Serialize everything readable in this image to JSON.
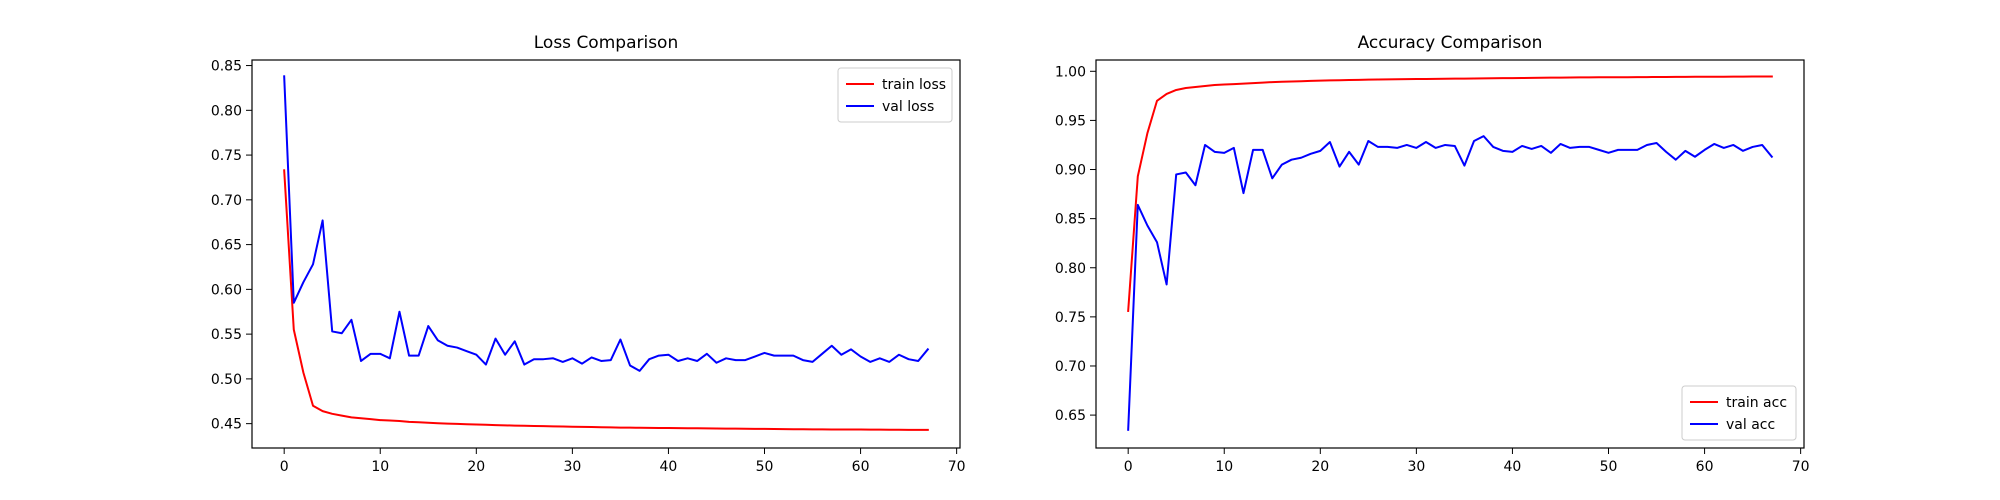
{
  "chart_data": [
    {
      "type": "line",
      "title": "Loss Comparison",
      "xlabel": "",
      "ylabel": "",
      "xlim": [
        -3.35,
        70.35
      ],
      "ylim": [
        0.4228,
        0.8562
      ],
      "xticks": [
        0,
        10,
        20,
        30,
        40,
        50,
        60,
        70
      ],
      "yticks": [
        0.45,
        0.5,
        0.55,
        0.6,
        0.65,
        0.7,
        0.75,
        0.8,
        0.85
      ],
      "x": [
        0,
        1,
        2,
        3,
        4,
        5,
        6,
        7,
        8,
        9,
        10,
        11,
        12,
        13,
        14,
        15,
        16,
        17,
        18,
        19,
        20,
        21,
        22,
        23,
        24,
        25,
        26,
        27,
        28,
        29,
        30,
        31,
        32,
        33,
        34,
        35,
        36,
        37,
        38,
        39,
        40,
        41,
        42,
        43,
        44,
        45,
        46,
        47,
        48,
        49,
        50,
        51,
        52,
        53,
        54,
        55,
        56,
        57,
        58,
        59,
        60,
        61,
        62,
        63,
        64,
        65,
        66,
        67
      ],
      "legend_position": "upper-right",
      "grid": false,
      "series": [
        {
          "name": "train loss",
          "color": "#ff0000",
          "values": [
            0.733,
            0.555,
            0.507,
            0.47,
            0.464,
            0.461,
            0.459,
            0.457,
            0.456,
            0.455,
            0.454,
            0.4535,
            0.453,
            0.452,
            0.4515,
            0.451,
            0.4505,
            0.45,
            0.4497,
            0.4493,
            0.449,
            0.4487,
            0.4484,
            0.4481,
            0.4478,
            0.4476,
            0.4474,
            0.4472,
            0.447,
            0.4468,
            0.4466,
            0.4464,
            0.4462,
            0.446,
            0.4458,
            0.4456,
            0.4455,
            0.4454,
            0.4453,
            0.4452,
            0.4451,
            0.445,
            0.4449,
            0.4448,
            0.4447,
            0.4446,
            0.4445,
            0.4444,
            0.4443,
            0.4442,
            0.4441,
            0.444,
            0.4439,
            0.4438,
            0.4437,
            0.4436,
            0.4436,
            0.4435,
            0.4435,
            0.4434,
            0.4434,
            0.4433,
            0.4433,
            0.4432,
            0.4432,
            0.4431,
            0.4431,
            0.443
          ]
        },
        {
          "name": "val loss",
          "color": "#0000ff",
          "values": [
            0.838,
            0.585,
            0.608,
            0.628,
            0.677,
            0.553,
            0.551,
            0.566,
            0.52,
            0.528,
            0.528,
            0.523,
            0.575,
            0.526,
            0.526,
            0.559,
            0.543,
            0.537,
            0.535,
            0.531,
            0.527,
            0.516,
            0.545,
            0.527,
            0.542,
            0.516,
            0.522,
            0.522,
            0.523,
            0.519,
            0.523,
            0.517,
            0.524,
            0.52,
            0.521,
            0.544,
            0.515,
            0.509,
            0.522,
            0.526,
            0.527,
            0.52,
            0.523,
            0.52,
            0.528,
            0.518,
            0.523,
            0.521,
            0.521,
            0.525,
            0.529,
            0.526,
            0.526,
            0.526,
            0.521,
            0.519,
            0.528,
            0.537,
            0.527,
            0.533,
            0.525,
            0.519,
            0.523,
            0.519,
            0.527,
            0.522,
            0.52,
            0.533
          ]
        }
      ]
    },
    {
      "type": "line",
      "title": "Accuracy Comparison",
      "xlabel": "",
      "ylabel": "",
      "xlim": [
        -3.35,
        70.35
      ],
      "ylim": [
        0.6165,
        1.0115
      ],
      "xticks": [
        0,
        10,
        20,
        30,
        40,
        50,
        60,
        70
      ],
      "yticks": [
        0.65,
        0.7,
        0.75,
        0.8,
        0.85,
        0.9,
        0.95,
        1.0
      ],
      "x": [
        0,
        1,
        2,
        3,
        4,
        5,
        6,
        7,
        8,
        9,
        10,
        11,
        12,
        13,
        14,
        15,
        16,
        17,
        18,
        19,
        20,
        21,
        22,
        23,
        24,
        25,
        26,
        27,
        28,
        29,
        30,
        31,
        32,
        33,
        34,
        35,
        36,
        37,
        38,
        39,
        40,
        41,
        42,
        43,
        44,
        45,
        46,
        47,
        48,
        49,
        50,
        51,
        52,
        53,
        54,
        55,
        56,
        57,
        58,
        59,
        60,
        61,
        62,
        63,
        64,
        65,
        66,
        67
      ],
      "legend_position": "lower-right",
      "grid": false,
      "series": [
        {
          "name": "train acc",
          "color": "#ff0000",
          "values": [
            0.756,
            0.893,
            0.937,
            0.97,
            0.977,
            0.981,
            0.983,
            0.984,
            0.985,
            0.986,
            0.9865,
            0.987,
            0.9875,
            0.988,
            0.9885,
            0.989,
            0.9893,
            0.9896,
            0.9899,
            0.9902,
            0.9905,
            0.9907,
            0.9909,
            0.9911,
            0.9913,
            0.9915,
            0.9917,
            0.9918,
            0.9919,
            0.992,
            0.9921,
            0.9922,
            0.9923,
            0.9924,
            0.9925,
            0.9926,
            0.9927,
            0.9928,
            0.9929,
            0.993,
            0.9931,
            0.9932,
            0.9933,
            0.9934,
            0.9935,
            0.9936,
            0.9937,
            0.9938,
            0.9938,
            0.9939,
            0.9939,
            0.994,
            0.994,
            0.9941,
            0.9941,
            0.9942,
            0.9942,
            0.9943,
            0.9943,
            0.9944,
            0.9944,
            0.9945,
            0.9945,
            0.9946,
            0.9946,
            0.9947,
            0.9947,
            0.9947
          ]
        },
        {
          "name": "val acc",
          "color": "#0000ff",
          "values": [
            0.635,
            0.864,
            0.843,
            0.826,
            0.783,
            0.895,
            0.897,
            0.884,
            0.925,
            0.918,
            0.917,
            0.922,
            0.876,
            0.92,
            0.92,
            0.891,
            0.905,
            0.91,
            0.912,
            0.916,
            0.919,
            0.928,
            0.903,
            0.918,
            0.905,
            0.929,
            0.923,
            0.923,
            0.922,
            0.925,
            0.922,
            0.928,
            0.922,
            0.925,
            0.924,
            0.904,
            0.929,
            0.934,
            0.923,
            0.919,
            0.918,
            0.924,
            0.921,
            0.924,
            0.917,
            0.926,
            0.922,
            0.923,
            0.923,
            0.92,
            0.917,
            0.92,
            0.92,
            0.92,
            0.925,
            0.927,
            0.918,
            0.91,
            0.919,
            0.913,
            0.92,
            0.926,
            0.922,
            0.925,
            0.919,
            0.923,
            0.925,
            0.913
          ]
        }
      ]
    }
  ]
}
